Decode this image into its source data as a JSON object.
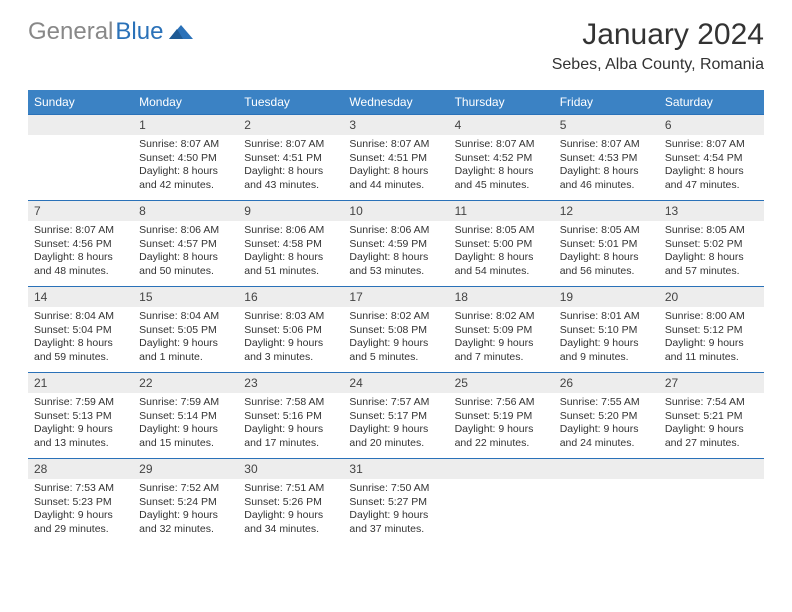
{
  "logo": {
    "grey": "General",
    "blue": "Blue"
  },
  "title": "January 2024",
  "location": "Sebes, Alba County, Romania",
  "colors": {
    "header_bg": "#3b82c4",
    "header_text": "#ffffff",
    "daynum_bg": "#ededed",
    "border": "#2a71b8",
    "logo_grey": "#888888",
    "logo_blue": "#2a71b8"
  },
  "day_names": [
    "Sunday",
    "Monday",
    "Tuesday",
    "Wednesday",
    "Thursday",
    "Friday",
    "Saturday"
  ],
  "weeks": [
    [
      null,
      {
        "n": "1",
        "sr": "8:07 AM",
        "ss": "4:50 PM",
        "dl": "8 hours and 42 minutes."
      },
      {
        "n": "2",
        "sr": "8:07 AM",
        "ss": "4:51 PM",
        "dl": "8 hours and 43 minutes."
      },
      {
        "n": "3",
        "sr": "8:07 AM",
        "ss": "4:51 PM",
        "dl": "8 hours and 44 minutes."
      },
      {
        "n": "4",
        "sr": "8:07 AM",
        "ss": "4:52 PM",
        "dl": "8 hours and 45 minutes."
      },
      {
        "n": "5",
        "sr": "8:07 AM",
        "ss": "4:53 PM",
        "dl": "8 hours and 46 minutes."
      },
      {
        "n": "6",
        "sr": "8:07 AM",
        "ss": "4:54 PM",
        "dl": "8 hours and 47 minutes."
      }
    ],
    [
      {
        "n": "7",
        "sr": "8:07 AM",
        "ss": "4:56 PM",
        "dl": "8 hours and 48 minutes."
      },
      {
        "n": "8",
        "sr": "8:06 AM",
        "ss": "4:57 PM",
        "dl": "8 hours and 50 minutes."
      },
      {
        "n": "9",
        "sr": "8:06 AM",
        "ss": "4:58 PM",
        "dl": "8 hours and 51 minutes."
      },
      {
        "n": "10",
        "sr": "8:06 AM",
        "ss": "4:59 PM",
        "dl": "8 hours and 53 minutes."
      },
      {
        "n": "11",
        "sr": "8:05 AM",
        "ss": "5:00 PM",
        "dl": "8 hours and 54 minutes."
      },
      {
        "n": "12",
        "sr": "8:05 AM",
        "ss": "5:01 PM",
        "dl": "8 hours and 56 minutes."
      },
      {
        "n": "13",
        "sr": "8:05 AM",
        "ss": "5:02 PM",
        "dl": "8 hours and 57 minutes."
      }
    ],
    [
      {
        "n": "14",
        "sr": "8:04 AM",
        "ss": "5:04 PM",
        "dl": "8 hours and 59 minutes."
      },
      {
        "n": "15",
        "sr": "8:04 AM",
        "ss": "5:05 PM",
        "dl": "9 hours and 1 minute."
      },
      {
        "n": "16",
        "sr": "8:03 AM",
        "ss": "5:06 PM",
        "dl": "9 hours and 3 minutes."
      },
      {
        "n": "17",
        "sr": "8:02 AM",
        "ss": "5:08 PM",
        "dl": "9 hours and 5 minutes."
      },
      {
        "n": "18",
        "sr": "8:02 AM",
        "ss": "5:09 PM",
        "dl": "9 hours and 7 minutes."
      },
      {
        "n": "19",
        "sr": "8:01 AM",
        "ss": "5:10 PM",
        "dl": "9 hours and 9 minutes."
      },
      {
        "n": "20",
        "sr": "8:00 AM",
        "ss": "5:12 PM",
        "dl": "9 hours and 11 minutes."
      }
    ],
    [
      {
        "n": "21",
        "sr": "7:59 AM",
        "ss": "5:13 PM",
        "dl": "9 hours and 13 minutes."
      },
      {
        "n": "22",
        "sr": "7:59 AM",
        "ss": "5:14 PM",
        "dl": "9 hours and 15 minutes."
      },
      {
        "n": "23",
        "sr": "7:58 AM",
        "ss": "5:16 PM",
        "dl": "9 hours and 17 minutes."
      },
      {
        "n": "24",
        "sr": "7:57 AM",
        "ss": "5:17 PM",
        "dl": "9 hours and 20 minutes."
      },
      {
        "n": "25",
        "sr": "7:56 AM",
        "ss": "5:19 PM",
        "dl": "9 hours and 22 minutes."
      },
      {
        "n": "26",
        "sr": "7:55 AM",
        "ss": "5:20 PM",
        "dl": "9 hours and 24 minutes."
      },
      {
        "n": "27",
        "sr": "7:54 AM",
        "ss": "5:21 PM",
        "dl": "9 hours and 27 minutes."
      }
    ],
    [
      {
        "n": "28",
        "sr": "7:53 AM",
        "ss": "5:23 PM",
        "dl": "9 hours and 29 minutes."
      },
      {
        "n": "29",
        "sr": "7:52 AM",
        "ss": "5:24 PM",
        "dl": "9 hours and 32 minutes."
      },
      {
        "n": "30",
        "sr": "7:51 AM",
        "ss": "5:26 PM",
        "dl": "9 hours and 34 minutes."
      },
      {
        "n": "31",
        "sr": "7:50 AM",
        "ss": "5:27 PM",
        "dl": "9 hours and 37 minutes."
      },
      null,
      null,
      null
    ]
  ]
}
